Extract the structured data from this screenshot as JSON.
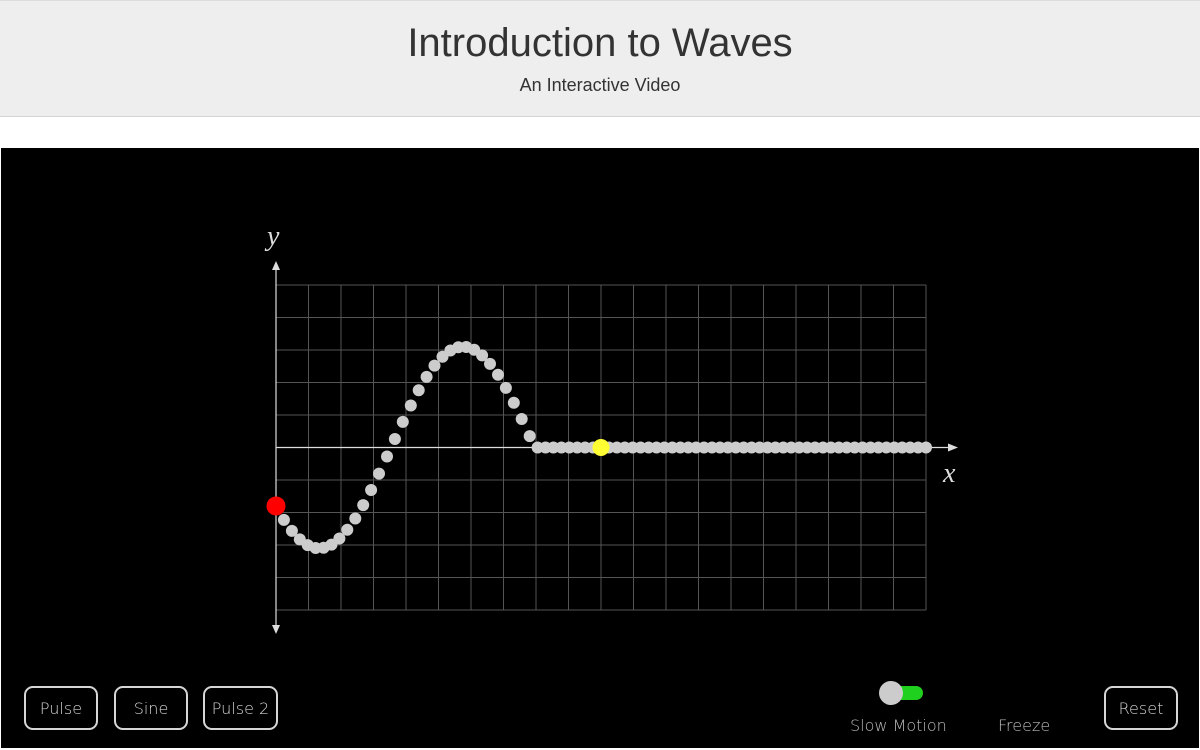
{
  "header": {
    "title": "Introduction to Waves",
    "subtitle": "An Interactive Video"
  },
  "plot": {
    "x_axis_label": "x",
    "y_axis_label": "y",
    "grid": true,
    "colors": {
      "background": "#000000",
      "grid": "#555555",
      "axis": "#dddddd",
      "particle": "#cccccc",
      "source_marker": "#ff0000",
      "tracked_marker": "#ffff33"
    },
    "wave": {
      "particle_count": 83,
      "cycles_shown": 0.9,
      "wavelength_grid_units": 8.85,
      "amplitude_grid_units": 3.1,
      "source_displacement": -1.8,
      "tracked_particle_index": 41
    }
  },
  "controls": {
    "buttons": [
      {
        "label": "Pulse"
      },
      {
        "label": "Sine"
      },
      {
        "label": "Pulse 2"
      }
    ],
    "slow_motion_label": "Slow Motion",
    "freeze_label": "Freeze",
    "reset_label": "Reset",
    "toggle_color": "#1fd01f"
  }
}
